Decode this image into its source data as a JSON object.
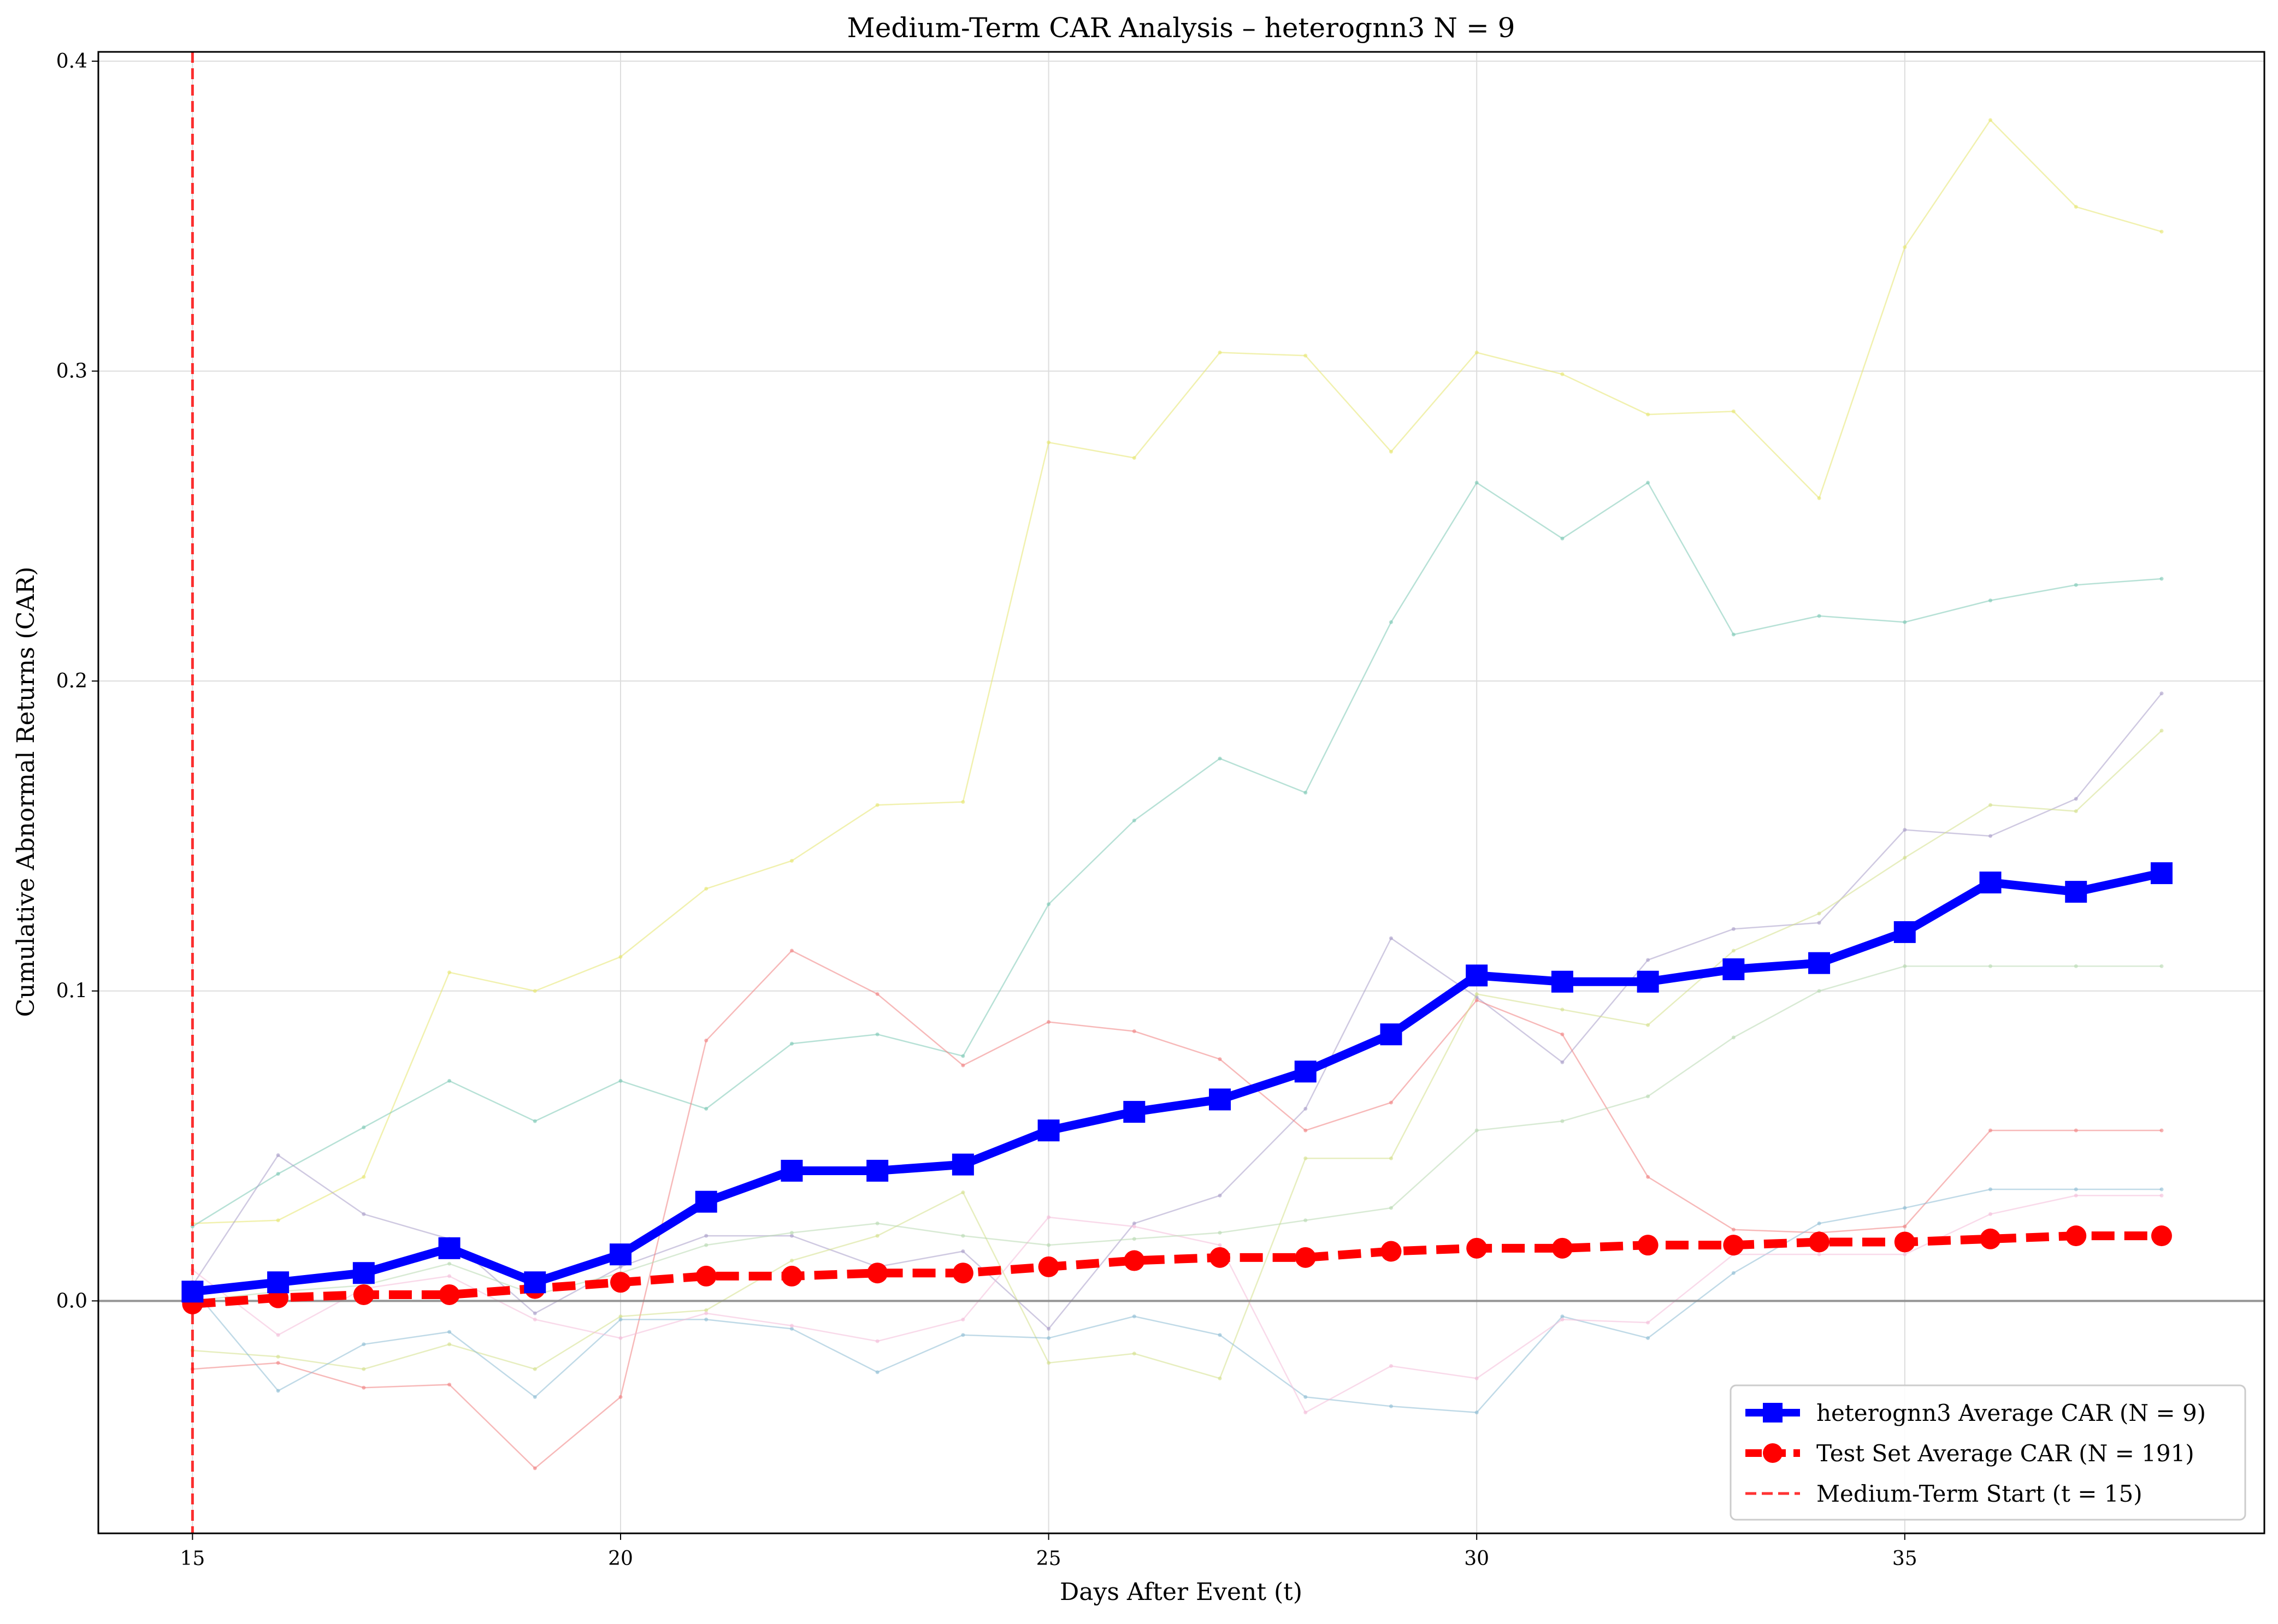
{
  "chart_data": {
    "type": "line",
    "title": "Medium-Term CAR Analysis – heterognn3   N = 9",
    "xlabel": "Days After Event (t)",
    "ylabel": "Cumulative Abnormal Returns (CAR)",
    "xlim": [
      13.9,
      39.2
    ],
    "ylim": [
      -0.075,
      0.403
    ],
    "xticks": [
      15,
      20,
      25,
      30,
      35
    ],
    "xtick_labels": [
      "15",
      "20",
      "25",
      "30",
      "35"
    ],
    "yticks": [
      0.0,
      0.1,
      0.2,
      0.3,
      0.4
    ],
    "ytick_labels": [
      "0.0",
      "0.1",
      "0.2",
      "0.3",
      "0.4"
    ],
    "grid": true,
    "legend_position": "lower-right",
    "x": [
      15,
      16,
      17,
      18,
      19,
      20,
      21,
      22,
      23,
      24,
      25,
      26,
      27,
      28,
      29,
      30,
      31,
      32,
      33,
      34,
      35,
      36,
      37,
      38
    ],
    "series": [
      {
        "name": "heterognn3 Average CAR   (N = 9)",
        "color": "#0000ff",
        "marker": "square",
        "dash": "solid",
        "values": [
          0.003,
          0.006,
          0.009,
          0.017,
          0.006,
          0.015,
          0.032,
          0.042,
          0.042,
          0.044,
          0.055,
          0.061,
          0.065,
          0.074,
          0.086,
          0.105,
          0.103,
          0.103,
          0.107,
          0.109,
          0.119,
          0.135,
          0.132,
          0.138
        ]
      },
      {
        "name": "Test Set Average CAR   (N = 191)",
        "color": "#ff0000",
        "marker": "circle",
        "dash": "dashed",
        "values": [
          -0.001,
          0.001,
          0.002,
          0.002,
          0.004,
          0.006,
          0.008,
          0.008,
          0.009,
          0.009,
          0.011,
          0.013,
          0.014,
          0.014,
          0.016,
          0.017,
          0.017,
          0.018,
          0.018,
          0.019,
          0.019,
          0.02,
          0.021,
          0.021
        ]
      }
    ],
    "background_series": [
      {
        "color": "#e6e66e",
        "values": [
          0.025,
          0.026,
          0.04,
          0.106,
          0.1,
          0.111,
          0.133,
          0.142,
          0.16,
          0.161,
          0.277,
          0.272,
          0.306,
          0.305,
          0.274,
          0.306,
          0.299,
          0.286,
          0.287,
          0.259,
          0.34,
          0.381,
          0.353,
          0.345
        ]
      },
      {
        "color": "#7bc8b4",
        "values": [
          0.024,
          0.041,
          0.056,
          0.071,
          0.058,
          0.071,
          0.062,
          0.083,
          0.086,
          0.079,
          0.128,
          0.155,
          0.175,
          0.164,
          0.219,
          0.264,
          0.246,
          0.264,
          0.215,
          0.221,
          0.219,
          0.226,
          0.231,
          0.233
        ]
      },
      {
        "color": "#a89cc8",
        "values": [
          0.005,
          0.047,
          0.028,
          0.02,
          -0.004,
          0.011,
          0.021,
          0.021,
          0.011,
          0.016,
          -0.009,
          0.025,
          0.034,
          0.062,
          0.117,
          0.098,
          0.077,
          0.11,
          0.12,
          0.122,
          0.152,
          0.15,
          0.162,
          0.196
        ]
      },
      {
        "color": "#f08080",
        "values": [
          -0.022,
          -0.02,
          -0.028,
          -0.027,
          -0.054,
          -0.031,
          0.084,
          0.113,
          0.099,
          0.076,
          0.09,
          0.087,
          0.078,
          0.055,
          0.064,
          0.097,
          0.086,
          0.04,
          0.023,
          0.022,
          0.024,
          0.055,
          0.055,
          0.055
        ]
      },
      {
        "color": "#d4e08a",
        "values": [
          -0.016,
          -0.018,
          -0.022,
          -0.014,
          -0.022,
          -0.005,
          -0.003,
          0.013,
          0.021,
          0.035,
          -0.02,
          -0.017,
          -0.025,
          0.046,
          0.046,
          0.099,
          0.094,
          0.089,
          0.113,
          0.125,
          0.143,
          0.16,
          0.158,
          0.184
        ]
      },
      {
        "color": "#8cbcd4",
        "values": [
          0.004,
          -0.029,
          -0.014,
          -0.01,
          -0.031,
          -0.006,
          -0.006,
          -0.009,
          -0.023,
          -0.011,
          -0.012,
          -0.005,
          -0.011,
          -0.031,
          -0.034,
          -0.036,
          -0.005,
          -0.012,
          0.009,
          0.025,
          0.03,
          0.036,
          0.036,
          0.036
        ]
      },
      {
        "color": "#f4bcd8",
        "values": [
          0.01,
          -0.011,
          0.004,
          0.008,
          -0.006,
          -0.012,
          -0.004,
          -0.008,
          -0.013,
          -0.006,
          0.027,
          0.024,
          0.018,
          -0.036,
          -0.021,
          -0.025,
          -0.006,
          -0.007,
          0.015,
          0.015,
          0.015,
          0.028,
          0.034,
          0.034
        ]
      },
      {
        "color": "#b8d8b0",
        "values": [
          0.0,
          0.003,
          0.005,
          0.012,
          0.002,
          0.009,
          0.018,
          0.022,
          0.025,
          0.021,
          0.018,
          0.02,
          0.022,
          0.026,
          0.03,
          0.055,
          0.058,
          0.066,
          0.085,
          0.1,
          0.108,
          0.108,
          0.108,
          0.108
        ]
      }
    ],
    "vline": {
      "x": 15,
      "color": "#ff0000",
      "label": "Medium-Term Start   (t = 15)"
    },
    "hline": {
      "y": 0.0,
      "color": "#808080"
    }
  }
}
